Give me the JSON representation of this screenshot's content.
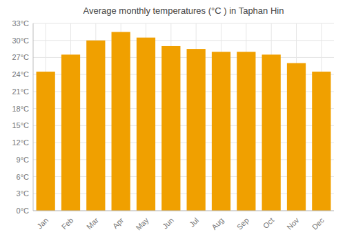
{
  "chart_data": {
    "type": "bar",
    "title": "Average monthly temperatures (°C ) in Taphan Hin",
    "categories": [
      "Jan",
      "Feb",
      "Mar",
      "Apr",
      "May",
      "Jun",
      "Jul",
      "Aug",
      "Sep",
      "Oct",
      "Nov",
      "Dec"
    ],
    "values": [
      24.5,
      27.5,
      30.0,
      31.5,
      30.5,
      29.0,
      28.5,
      28.0,
      28.0,
      27.5,
      26.0,
      24.5
    ],
    "color": "#F0A000",
    "ylim": [
      0,
      33
    ],
    "yticks": [
      {
        "value": 0,
        "label": "0°C"
      },
      {
        "value": 3,
        "label": "3°C"
      },
      {
        "value": 6,
        "label": "6°C"
      },
      {
        "value": 9,
        "label": "9°C"
      },
      {
        "value": 12,
        "label": "12°C"
      },
      {
        "value": 15,
        "label": "15°C"
      },
      {
        "value": 18,
        "label": "18°C"
      },
      {
        "value": 21,
        "label": "21°C"
      },
      {
        "value": 24,
        "label": "24°C"
      },
      {
        "value": 27,
        "label": "27°C"
      },
      {
        "value": 30,
        "label": "30°C"
      },
      {
        "value": 33,
        "label": "33°C"
      }
    ],
    "grid": true
  }
}
